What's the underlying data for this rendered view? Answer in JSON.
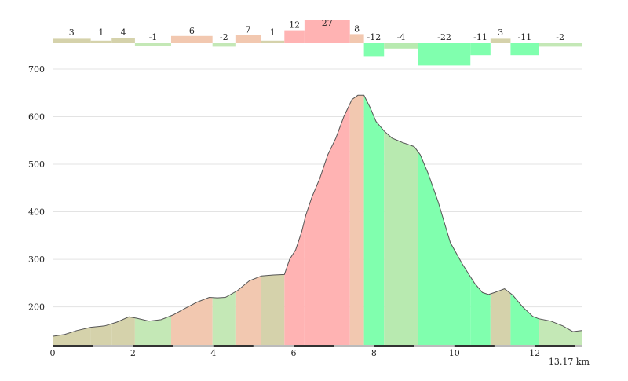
{
  "chart_data": {
    "type": "area",
    "title": "",
    "xlabel": "",
    "ylabel": "",
    "x_unit": "13.17 km",
    "xlim": [
      0,
      13.17
    ],
    "ylim": [
      120,
      700
    ],
    "x_ticks": [
      "0",
      "2",
      "4",
      "6",
      "8",
      "10",
      "12"
    ],
    "y_ticks": [
      "200",
      "300",
      "400",
      "500",
      "600",
      "700"
    ],
    "grid": true,
    "colors": {
      "0": "#d5d2ab",
      "1": "#d5d2ab",
      "2": "#d5d2ab",
      "3": "#d5d2ab",
      "4": "#d5d2ab",
      "5": "#f2c8b0",
      "6": "#f2c8b0",
      "7": "#f2c8b0",
      "8": "#f2c8b0",
      "9": "#f2c8b0",
      "10": "#ffb3b3",
      "12": "#ffb3b3",
      "27": "#ffb3b3",
      "-1": "#c4e8b6",
      "-2": "#c4e8b6",
      "-4": "#b8eab0",
      "-11": "#80ffae",
      "-12": "#80ffae",
      "-22": "#80ffae"
    },
    "segments": [
      {
        "x0": 0.0,
        "x1": 0.95,
        "grade": "3"
      },
      {
        "x0": 0.95,
        "x1": 1.47,
        "grade": "1"
      },
      {
        "x0": 1.47,
        "x1": 2.05,
        "grade": "4"
      },
      {
        "x0": 2.05,
        "x1": 2.95,
        "grade": "-1"
      },
      {
        "x0": 2.95,
        "x1": 3.98,
        "grade": "6"
      },
      {
        "x0": 3.98,
        "x1": 4.55,
        "grade": "-2"
      },
      {
        "x0": 4.55,
        "x1": 5.18,
        "grade": "7"
      },
      {
        "x0": 5.18,
        "x1": 5.77,
        "grade": "1"
      },
      {
        "x0": 5.77,
        "x1": 6.27,
        "grade": "12"
      },
      {
        "x0": 6.27,
        "x1": 7.4,
        "grade": "27"
      },
      {
        "x0": 7.4,
        "x1": 7.75,
        "grade": "8"
      },
      {
        "x0": 7.75,
        "x1": 8.25,
        "grade": "-12"
      },
      {
        "x0": 8.25,
        "x1": 9.1,
        "grade": "-4"
      },
      {
        "x0": 9.1,
        "x1": 10.4,
        "grade": "-22"
      },
      {
        "x0": 10.4,
        "x1": 10.9,
        "grade": "-11"
      },
      {
        "x0": 10.9,
        "x1": 11.4,
        "grade": "3"
      },
      {
        "x0": 11.4,
        "x1": 12.1,
        "grade": "-11"
      },
      {
        "x0": 12.1,
        "x1": 13.17,
        "grade": "-2"
      }
    ],
    "profile": {
      "x": [
        0,
        0.3,
        0.6,
        0.95,
        1.3,
        1.6,
        1.9,
        2.1,
        2.4,
        2.7,
        3.0,
        3.3,
        3.6,
        3.9,
        4.1,
        4.3,
        4.6,
        4.9,
        5.2,
        5.5,
        5.77,
        5.9,
        6.05,
        6.2,
        6.3,
        6.45,
        6.65,
        6.85,
        7.05,
        7.25,
        7.45,
        7.6,
        7.75,
        7.9,
        8.05,
        8.25,
        8.45,
        8.7,
        9.0,
        9.15,
        9.35,
        9.6,
        9.9,
        10.2,
        10.5,
        10.7,
        10.85,
        11.0,
        11.25,
        11.45,
        11.7,
        11.95,
        12.1,
        12.4,
        12.7,
        12.95,
        13.17
      ],
      "y": [
        138,
        142,
        150,
        157,
        160,
        168,
        179,
        176,
        170,
        173,
        183,
        197,
        210,
        220,
        219,
        220,
        234,
        255,
        265,
        267,
        268,
        300,
        320,
        358,
        392,
        430,
        470,
        520,
        555,
        600,
        636,
        645,
        645,
        620,
        590,
        570,
        555,
        546,
        537,
        520,
        480,
        420,
        335,
        290,
        250,
        230,
        226,
        230,
        238,
        225,
        200,
        180,
        175,
        170,
        160,
        148,
        150
      ]
    },
    "labels": [
      "3",
      "1",
      "4",
      "-1",
      "6",
      "-2",
      "7",
      "1",
      "12",
      "27",
      "8",
      "-12",
      "-4",
      "-22",
      "-11",
      "3",
      "-11",
      "-2"
    ]
  }
}
